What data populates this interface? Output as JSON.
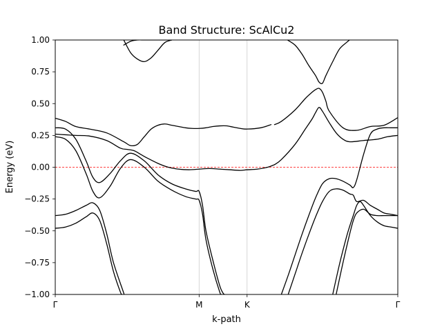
{
  "chart_data": {
    "type": "line",
    "title": "Band Structure: ScAlCu2",
    "xlabel": "k-path",
    "ylabel": "Energy (eV)",
    "ylim": [
      -1.0,
      1.0
    ],
    "xlim": [
      0,
      1
    ],
    "grid": "vertical lines at high-symmetry points",
    "legend": "none",
    "y_ticks": [
      "−1.00",
      "−0.75",
      "−0.50",
      "−0.25",
      "0.00",
      "0.25",
      "0.50",
      "0.75",
      "1.00"
    ],
    "y_tick_values": [
      -1.0,
      -0.75,
      -0.5,
      -0.25,
      0.0,
      0.25,
      0.5,
      0.75,
      1.0
    ],
    "kpoints": [
      {
        "label": "Γ",
        "x": 0.0
      },
      {
        "label": "M",
        "x": 0.42
      },
      {
        "label": "K",
        "x": 0.56
      },
      {
        "label": "Γ",
        "x": 1.0
      }
    ],
    "fermi_level": 0.0,
    "colors": {
      "bands": "#000000",
      "fermi": "#ff0000",
      "symmetry_lines": "#cccccc"
    },
    "series": [
      {
        "x": [
          0.0,
          0.03,
          0.06,
          0.09,
          0.11,
          0.13,
          0.15,
          0.17,
          0.2,
          0.2
        ],
        "y": [
          -0.38,
          -0.37,
          -0.34,
          -0.3,
          -0.28,
          -0.34,
          -0.52,
          -0.75,
          -0.99,
          -1.0
        ]
      },
      {
        "x": [
          0.0,
          0.03,
          0.06,
          0.09,
          0.11,
          0.13,
          0.15,
          0.17,
          0.19,
          0.195
        ],
        "y": [
          -0.48,
          -0.47,
          -0.44,
          -0.39,
          -0.36,
          -0.42,
          -0.6,
          -0.82,
          -0.98,
          -1.0
        ]
      },
      {
        "x": [
          0.0,
          0.03,
          0.06,
          0.09,
          0.11,
          0.13,
          0.16,
          0.19,
          0.22,
          0.26,
          0.3,
          0.34,
          0.38,
          0.41,
          0.42,
          0.43,
          0.44,
          0.46,
          0.48,
          0.49,
          0.495
        ],
        "y": [
          0.31,
          0.3,
          0.22,
          0.05,
          -0.08,
          -0.12,
          -0.05,
          0.05,
          0.11,
          0.05,
          -0.06,
          -0.13,
          -0.17,
          -0.19,
          -0.19,
          -0.3,
          -0.5,
          -0.73,
          -0.93,
          -0.99,
          -1.0
        ]
      },
      {
        "x": [
          0.0,
          0.03,
          0.06,
          0.09,
          0.11,
          0.13,
          0.16,
          0.19,
          0.22,
          0.26,
          0.3,
          0.34,
          0.38,
          0.41,
          0.42,
          0.43,
          0.44,
          0.46,
          0.48,
          0.485
        ],
        "y": [
          0.24,
          0.22,
          0.13,
          -0.05,
          -0.19,
          -0.24,
          -0.15,
          -0.01,
          0.06,
          0.0,
          -0.11,
          -0.18,
          -0.23,
          -0.25,
          -0.26,
          -0.37,
          -0.57,
          -0.8,
          -0.98,
          -1.0
        ]
      },
      {
        "x": [
          0.0,
          0.03,
          0.06,
          0.1,
          0.15,
          0.2,
          0.22,
          0.24,
          0.26,
          0.28,
          0.3,
          0.32,
          0.34,
          0.36,
          0.38,
          0.4,
          0.42,
          0.44,
          0.46,
          0.48,
          0.5,
          0.52,
          0.54,
          0.56,
          0.6,
          0.63
        ],
        "y": [
          0.385,
          0.36,
          0.32,
          0.3,
          0.27,
          0.2,
          0.17,
          0.18,
          0.24,
          0.3,
          0.33,
          0.34,
          0.33,
          0.32,
          0.31,
          0.305,
          0.305,
          0.31,
          0.32,
          0.325,
          0.325,
          0.315,
          0.305,
          0.3,
          0.31,
          0.335
        ]
      },
      {
        "x": [
          0.0,
          0.03,
          0.06,
          0.1,
          0.15,
          0.19,
          0.21,
          0.23,
          0.25,
          0.27,
          0.3,
          0.33,
          0.36,
          0.39,
          0.42,
          0.45,
          0.48,
          0.51,
          0.54,
          0.56,
          0.59,
          0.62,
          0.64
        ],
        "y": [
          0.26,
          0.255,
          0.25,
          0.245,
          0.21,
          0.15,
          0.14,
          0.13,
          0.1,
          0.07,
          0.03,
          0.0,
          -0.015,
          -0.02,
          -0.015,
          -0.01,
          -0.015,
          -0.02,
          -0.025,
          -0.02,
          -0.015,
          0.0,
          0.02
        ]
      },
      {
        "x": [
          0.2,
          0.22,
          0.24,
          0.26,
          0.28,
          0.3,
          0.34
        ],
        "y": [
          0.96,
          0.99,
          1.0,
          1.0,
          1.0,
          1.0,
          1.0
        ]
      },
      {
        "x": [
          0.2,
          0.22,
          0.24,
          0.26,
          0.28,
          0.3,
          0.32,
          0.34
        ],
        "y": [
          1.0,
          0.9,
          0.85,
          0.83,
          0.86,
          0.92,
          0.98,
          1.0
        ]
      },
      {
        "x": [
          0.678,
          0.7,
          0.72,
          0.74,
          0.76,
          0.77,
          0.78,
          0.79,
          0.81,
          0.83,
          0.85,
          0.859
        ],
        "y": [
          1.0,
          0.96,
          0.89,
          0.8,
          0.72,
          0.67,
          0.66,
          0.72,
          0.83,
          0.93,
          0.98,
          1.0
        ]
      },
      {
        "x": [
          0.64,
          0.66,
          0.7,
          0.73,
          0.75,
          0.76,
          0.77,
          0.78,
          0.79,
          0.8,
          0.84,
          0.88,
          0.92,
          0.96,
          1.0
        ],
        "y": [
          0.335,
          0.36,
          0.45,
          0.54,
          0.59,
          0.61,
          0.62,
          0.59,
          0.52,
          0.44,
          0.31,
          0.29,
          0.32,
          0.33,
          0.39
        ]
      },
      {
        "x": [
          0.64,
          0.66,
          0.7,
          0.73,
          0.75,
          0.76,
          0.77,
          0.78,
          0.8,
          0.82,
          0.84,
          0.86,
          0.9,
          0.94,
          0.97,
          1.0
        ],
        "y": [
          0.02,
          0.06,
          0.18,
          0.3,
          0.38,
          0.43,
          0.47,
          0.44,
          0.35,
          0.27,
          0.22,
          0.2,
          0.21,
          0.22,
          0.24,
          0.25
        ]
      },
      {
        "x": [
          0.66,
          0.68,
          0.7,
          0.72,
          0.74,
          0.76,
          0.78,
          0.8,
          0.82,
          0.84,
          0.86,
          0.87,
          0.88,
          0.9,
          0.92,
          0.94,
          0.96,
          0.98,
          1.0
        ],
        "y": [
          -1.0,
          -0.85,
          -0.69,
          -0.53,
          -0.38,
          -0.24,
          -0.13,
          -0.09,
          -0.09,
          -0.11,
          -0.14,
          -0.16,
          -0.1,
          0.1,
          0.26,
          0.3,
          0.31,
          0.31,
          0.31
        ]
      },
      {
        "x": [
          0.68,
          0.7,
          0.72,
          0.74,
          0.76,
          0.78,
          0.8,
          0.82,
          0.84,
          0.86,
          0.87,
          0.88,
          0.9,
          0.92,
          0.94,
          0.96,
          0.98,
          1.0
        ],
        "y": [
          -1.0,
          -0.84,
          -0.68,
          -0.53,
          -0.39,
          -0.27,
          -0.19,
          -0.17,
          -0.18,
          -0.21,
          -0.22,
          -0.27,
          -0.26,
          -0.3,
          -0.33,
          -0.36,
          -0.37,
          -0.38
        ]
      },
      {
        "x": [
          0.81,
          0.83,
          0.85,
          0.86,
          0.87,
          0.88,
          0.89,
          0.9,
          0.92,
          0.94,
          0.96,
          0.98,
          1.0
        ],
        "y": [
          -1.0,
          -0.76,
          -0.55,
          -0.46,
          -0.38,
          -0.3,
          -0.27,
          -0.3,
          -0.38,
          -0.43,
          -0.46,
          -0.47,
          -0.48
        ]
      },
      {
        "x": [
          0.82,
          0.84,
          0.86,
          0.87,
          0.88,
          0.9,
          0.92,
          0.94,
          0.96,
          0.98,
          1.0
        ],
        "y": [
          -1.0,
          -0.75,
          -0.52,
          -0.42,
          -0.36,
          -0.33,
          -0.37,
          -0.38,
          -0.38,
          -0.38,
          -0.38
        ]
      }
    ]
  }
}
